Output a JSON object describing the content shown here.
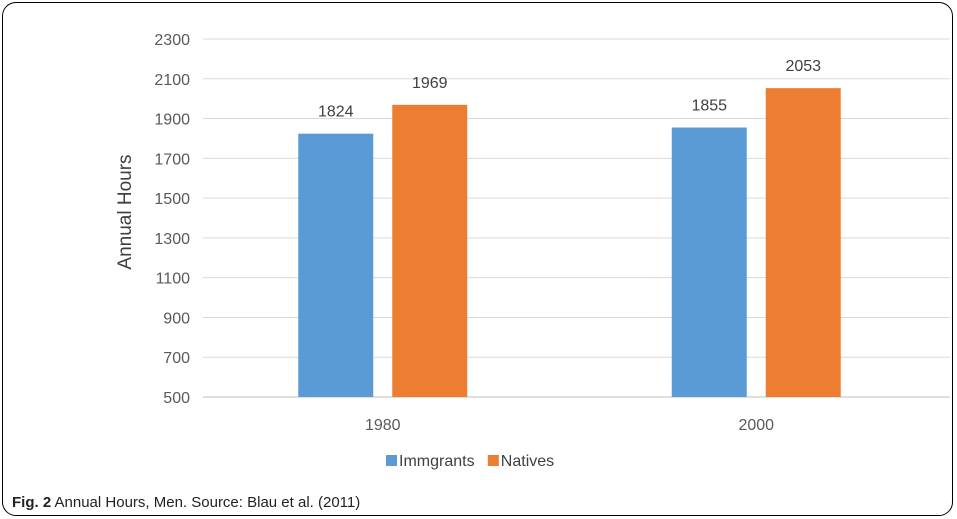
{
  "chart_data": {
    "type": "bar",
    "categories": [
      "1980",
      "2000"
    ],
    "series": [
      {
        "name": "Immgrants",
        "values": [
          1824,
          1855
        ],
        "color": "#5B9BD5"
      },
      {
        "name": "Natives",
        "values": [
          1969,
          2053
        ],
        "color": "#ED7D31"
      }
    ],
    "ylabel": "Annual Hours",
    "ylim": [
      500,
      2300
    ],
    "yticks": [
      500,
      700,
      900,
      1100,
      1300,
      1500,
      1700,
      1900,
      2100,
      2300
    ],
    "grid": true,
    "legend": "bottom"
  },
  "caption": {
    "prefix": "Fig. 2",
    "text": "Annual Hours, Men. Source: Blau et al. (2011)"
  }
}
